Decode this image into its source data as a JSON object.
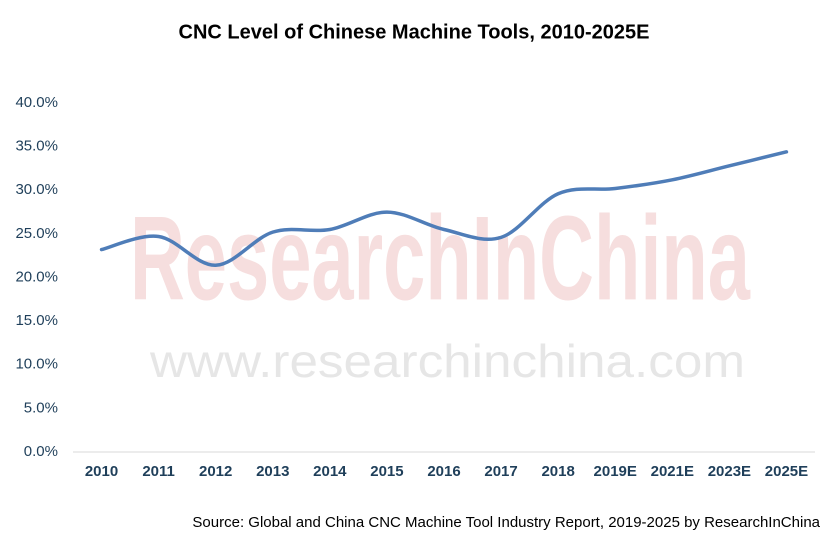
{
  "chart_data": {
    "type": "line",
    "title": "CNC Level of Chinese Machine Tools, 2010-2025E",
    "categories": [
      "2010",
      "2011",
      "2012",
      "2013",
      "2014",
      "2015",
      "2016",
      "2017",
      "2018",
      "2019E",
      "2021E",
      "2023E",
      "2025E"
    ],
    "values": [
      23.2,
      24.7,
      21.4,
      25.2,
      25.5,
      27.5,
      25.5,
      24.6,
      29.6,
      30.2,
      31.2,
      32.8,
      34.4
    ],
    "color": "#4f7db8",
    "ylim": [
      0,
      40
    ],
    "yticks": [
      {
        "value": 0,
        "label": "0.0%"
      },
      {
        "value": 5,
        "label": "5.0%"
      },
      {
        "value": 10,
        "label": "10.0%"
      },
      {
        "value": 15,
        "label": "15.0%"
      },
      {
        "value": 20,
        "label": "20.0%"
      },
      {
        "value": 25,
        "label": "25.0%"
      },
      {
        "value": 30,
        "label": "30.0%"
      },
      {
        "value": 35,
        "label": "35.0%"
      },
      {
        "value": 40,
        "label": "40.0%"
      }
    ],
    "grid": false,
    "source": "Source: Global and China CNC Machine Tool Industry Report, 2019-2025 by ResearchInChina",
    "watermark": [
      "ResearchInChina",
      "www.researchinchina.com"
    ]
  }
}
